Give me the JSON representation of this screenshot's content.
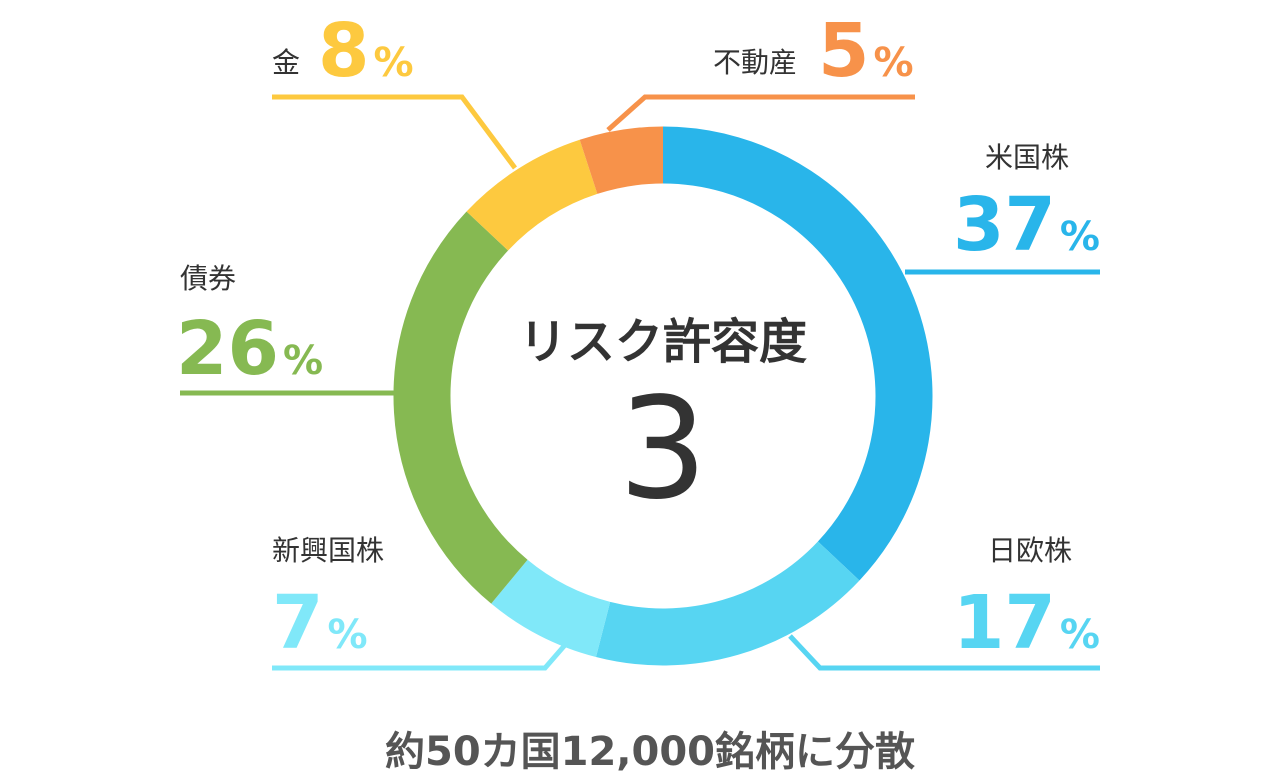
{
  "chart_data": {
    "type": "pie",
    "center_title": "リスク許容度",
    "center_value": 3,
    "categories": [
      "米国株",
      "日欧株",
      "新興国株",
      "債券",
      "金",
      "不動産"
    ],
    "values": [
      37,
      17,
      7,
      26,
      8,
      5
    ],
    "value_labels": [
      "37%",
      "17%",
      "7%",
      "26%",
      "8%",
      "5%"
    ],
    "colors": [
      "#29b5ea",
      "#57d5f2",
      "#80e8f9",
      "#86b952",
      "#fdc93f",
      "#f7924a"
    ],
    "caption": "約50カ国12,000銘柄に分散"
  }
}
